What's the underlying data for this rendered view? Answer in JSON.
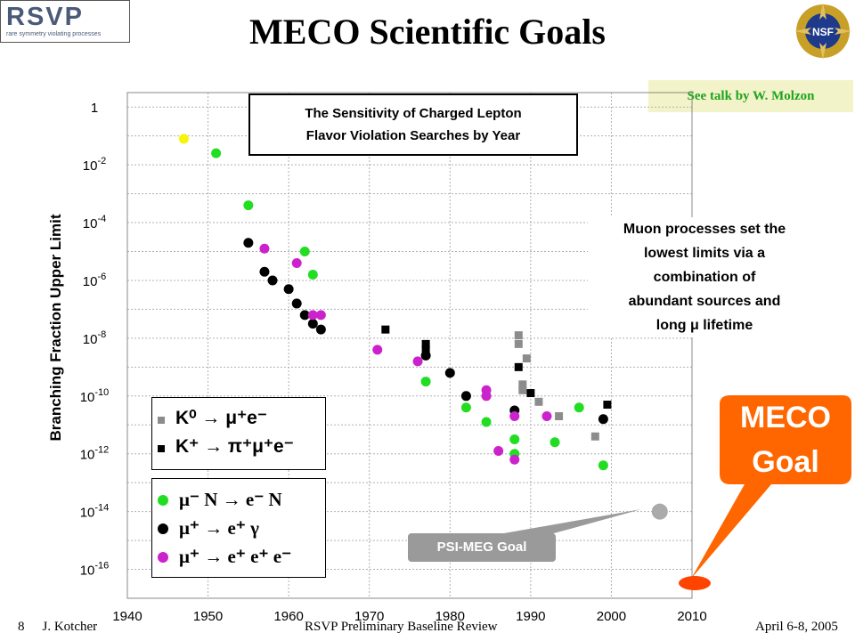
{
  "header": {
    "logo_text": "RSVP",
    "logo_subtext": "rare symmetry violating processes",
    "title": "MECO Scientific Goals",
    "nsf_logo": "NSF"
  },
  "see_talk": "See talk by W. Molzon",
  "sensitivity_box": {
    "line1": "The Sensitivity of Charged Lepton",
    "line2": "Flavor Violation Searches by Year"
  },
  "muon_note": {
    "line1": "Muon processes set the",
    "line2": "lowest limits via a",
    "line3": "combination of",
    "line4": "abundant sources and",
    "line5": "long μ lifetime"
  },
  "legend_k": [
    {
      "label": "K⁰ → μ⁺e⁻",
      "marker": "square",
      "color": "#8c8c8c"
    },
    {
      "label": "K⁺ → π⁺μ⁺e⁻",
      "marker": "square",
      "color": "#000000"
    }
  ],
  "legend_mu": [
    {
      "label": "μ⁻ N → e⁻ N",
      "marker": "circle",
      "color": "#22dd22"
    },
    {
      "label": "μ⁺ → e⁺ γ",
      "marker": "circle",
      "color": "#000000"
    },
    {
      "label": "μ⁺ → e⁺ e⁺ e⁻",
      "marker": "circle",
      "color": "#cc22cc"
    }
  ],
  "meco_goal": {
    "line1": "MECO",
    "line2": "Goal",
    "color": "#ff6600"
  },
  "psi_goal": "PSI-MEG Goal",
  "footer": {
    "page": "8",
    "author": "J. Kotcher",
    "center": "RSVP Preliminary Baseline Review",
    "date": "April 6-8, 2005"
  },
  "chart_data": {
    "type": "scatter",
    "title": "",
    "xlabel": "",
    "ylabel": "Branching Fraction Upper Limit",
    "xlim": [
      1940,
      2010
    ],
    "ylim_log10": [
      -17,
      0.5
    ],
    "y_scale": "log",
    "x_ticks": [
      "1940",
      "1950",
      "1960",
      "1970",
      "1980",
      "1990",
      "2000",
      "2010"
    ],
    "y_ticks": [
      {
        "base": "1",
        "exp": ""
      },
      {
        "base": "10",
        "exp": "-2"
      },
      {
        "base": "10",
        "exp": "-4"
      },
      {
        "base": "10",
        "exp": "-6"
      },
      {
        "base": "10",
        "exp": "-8"
      },
      {
        "base": "10",
        "exp": "-10"
      },
      {
        "base": "10",
        "exp": "-12"
      },
      {
        "base": "10",
        "exp": "-14"
      },
      {
        "base": "10",
        "exp": "-16"
      }
    ],
    "grid": true,
    "series": [
      {
        "name": "K⁰ → μ⁺e⁻",
        "marker": "square",
        "color": "#8c8c8c",
        "points": [
          [
            1988.5,
            -7.9
          ],
          [
            1988.5,
            -8.2
          ],
          [
            1989.5,
            -8.7
          ],
          [
            1989,
            -9.6
          ],
          [
            1989,
            -9.8
          ],
          [
            1991,
            -10.2
          ],
          [
            1993.5,
            -10.7
          ],
          [
            1998,
            -11.4
          ]
        ]
      },
      {
        "name": "K⁺ → π⁺μ⁺e⁻",
        "marker": "square",
        "color": "#000000",
        "points": [
          [
            1972,
            -7.7
          ],
          [
            1977,
            -8.2
          ],
          [
            1977,
            -8.4
          ],
          [
            1988.5,
            -9.0
          ],
          [
            1990,
            -9.9
          ],
          [
            1999.5,
            -10.3
          ]
        ]
      },
      {
        "name": "μ⁻ N → e⁻ N",
        "marker": "circle",
        "color": "#22dd22",
        "points": [
          [
            1947,
            -1.1
          ],
          [
            1951,
            -1.6
          ],
          [
            1955,
            -3.4
          ],
          [
            1962,
            -5.0
          ],
          [
            1963,
            -5.8
          ],
          [
            1977,
            -9.5
          ],
          [
            1982,
            -10.4
          ],
          [
            1984.5,
            -10.9
          ],
          [
            1988,
            -11.5
          ],
          [
            1988,
            -12.0
          ],
          [
            1993,
            -11.6
          ],
          [
            1996,
            -10.4
          ],
          [
            1999,
            -12.4
          ]
        ]
      },
      {
        "name": "μ⁺ → e⁺ γ",
        "marker": "circle",
        "color": "#000000",
        "points": [
          [
            1955,
            -4.7
          ],
          [
            1957,
            -5.7
          ],
          [
            1958,
            -6.0
          ],
          [
            1960,
            -6.3
          ],
          [
            1961,
            -6.8
          ],
          [
            1962,
            -7.2
          ],
          [
            1963,
            -7.5
          ],
          [
            1964,
            -7.7
          ],
          [
            1977,
            -8.6
          ],
          [
            1980,
            -9.2
          ],
          [
            1982,
            -10.0
          ],
          [
            1988,
            -10.5
          ],
          [
            1999,
            -10.8
          ]
        ]
      },
      {
        "name": "μ⁺ → e⁺ e⁺ e⁻",
        "marker": "circle",
        "color": "#cc22cc",
        "points": [
          [
            1957,
            -4.9
          ],
          [
            1961,
            -5.4
          ],
          [
            1963,
            -7.2
          ],
          [
            1964,
            -7.2
          ],
          [
            1971,
            -8.4
          ],
          [
            1976,
            -8.8
          ],
          [
            1984.5,
            -9.8
          ],
          [
            1984.5,
            -10.0
          ],
          [
            1986,
            -11.9
          ],
          [
            1988,
            -10.7
          ],
          [
            1988,
            -12.2
          ],
          [
            1992,
            -10.7
          ]
        ]
      },
      {
        "name": "PSI-MEG Goal",
        "marker": "circle",
        "color": "#aaaaaa",
        "points": [
          [
            2006,
            -14.0
          ]
        ]
      }
    ],
    "meco_goal_point": [
      2006.5,
      -17.0
    ]
  }
}
